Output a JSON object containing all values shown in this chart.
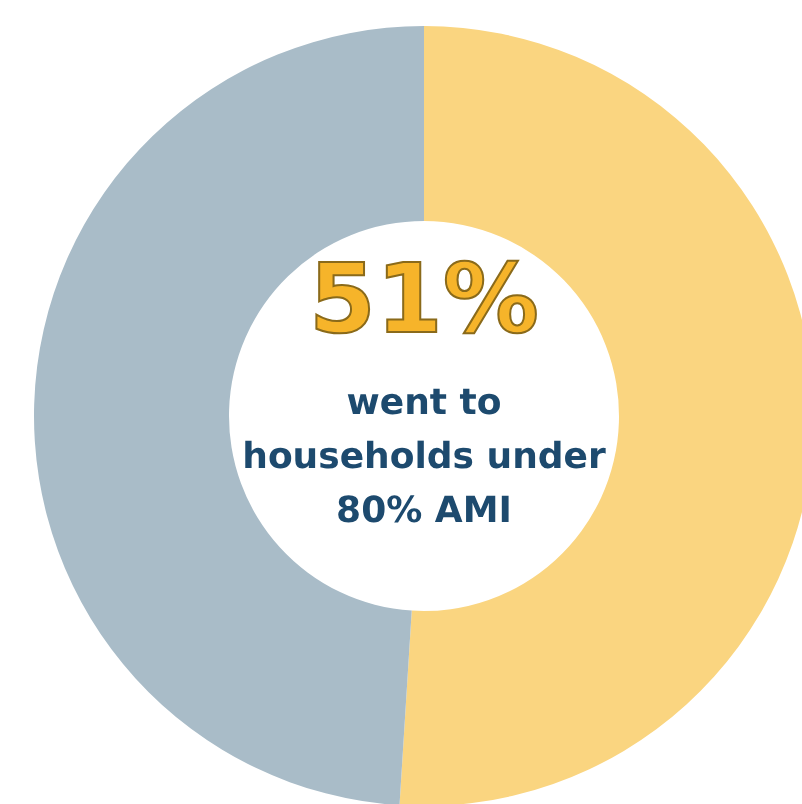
{
  "chart_data": {
    "type": "donut",
    "categories": [
      null,
      null
    ],
    "values": [
      51,
      49
    ],
    "colors": [
      "#fad580",
      "#a9bcc8"
    ],
    "annotations": [
      "51%",
      "went to households under 80% AMI"
    ],
    "legend": false
  }
}
